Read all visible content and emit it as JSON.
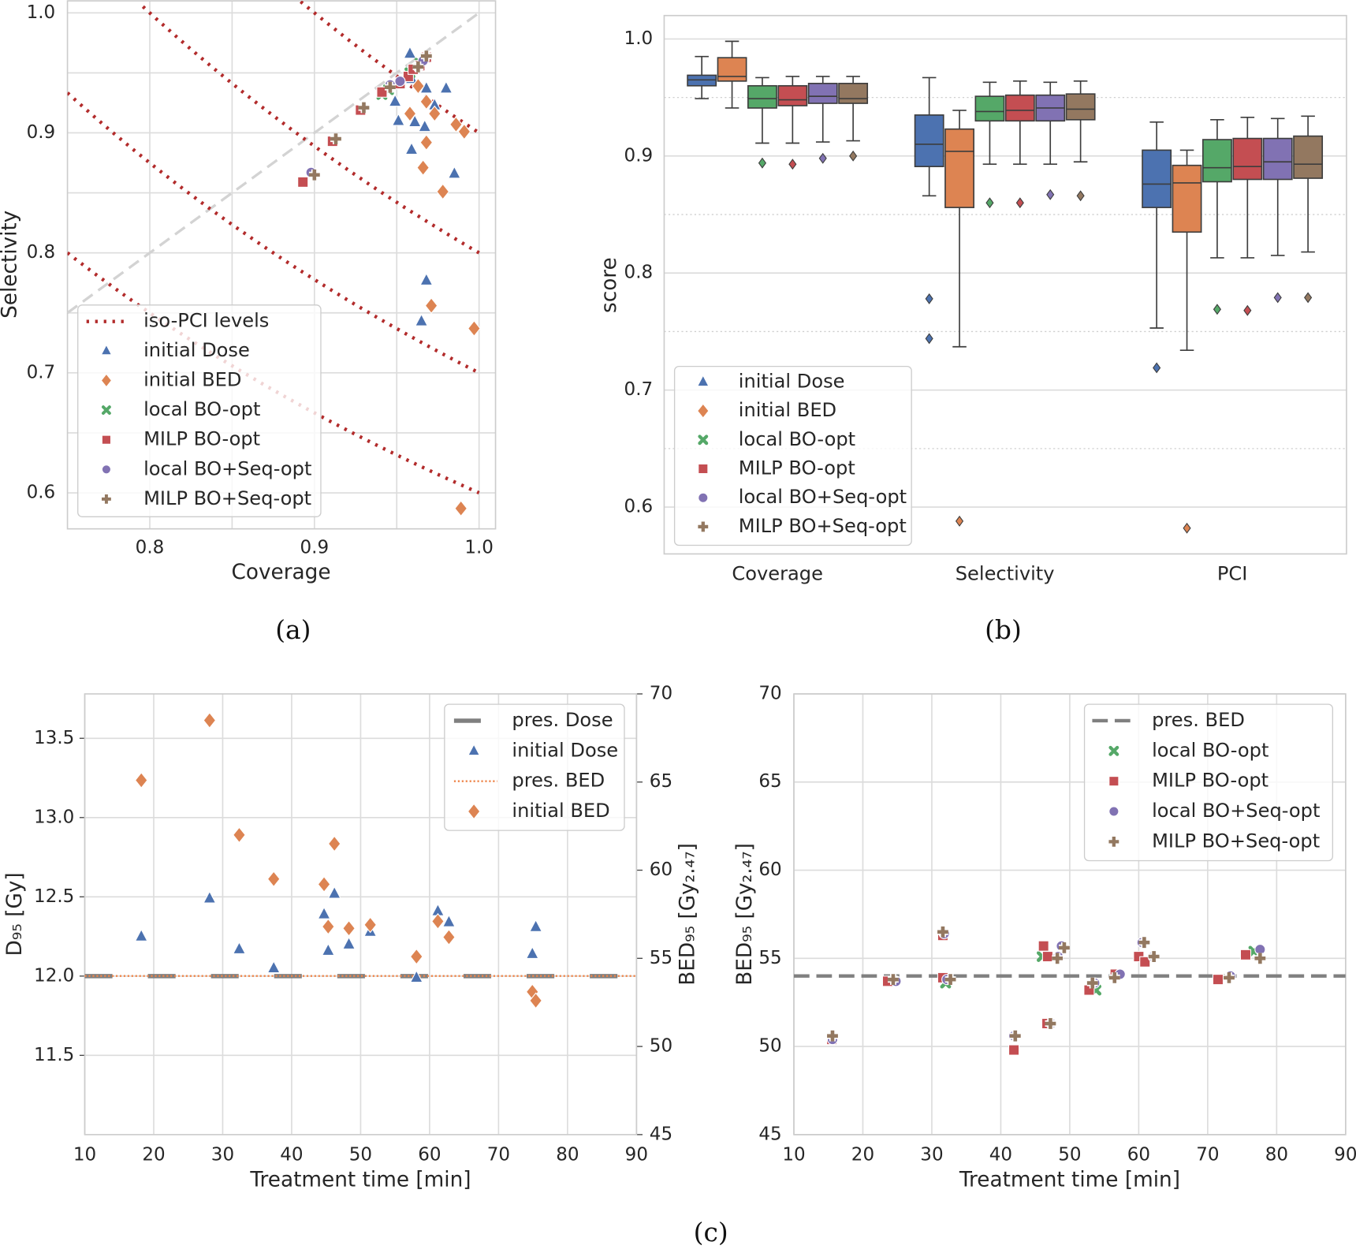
{
  "figure_labels": {
    "a": "(a)",
    "b": "(b)",
    "c": "(c)"
  },
  "colors": {
    "initial_dose": "#4c72b0",
    "initial_bed": "#dd8452",
    "local_bo_opt": "#55a868",
    "milp_bo_opt": "#c44e52",
    "local_bo_seq_opt": "#8172b3",
    "milp_bo_seq_opt": "#937860",
    "iso_pci": "#b22b2b",
    "pres_dose": "#808080",
    "pres_bed_dotted": "#ee854a",
    "identity_line": "#d3d3d3"
  },
  "chart_data": [
    {
      "panel": "a",
      "type": "scatter",
      "xlabel": "Coverage",
      "ylabel": "Selectivity",
      "xlim": [
        0.75,
        1.01
      ],
      "ylim": [
        0.57,
        1.01
      ],
      "xticks": [
        "0.8",
        "0.9",
        "1.0"
      ],
      "yticks": [
        "0.6",
        "0.7",
        "0.8",
        "0.9",
        "1.0"
      ],
      "grid": true,
      "legend": "lower-left",
      "identity_line": true,
      "iso_pci": {
        "name": "iso-PCI levels",
        "levels": [
          0.6,
          0.7,
          0.8,
          0.9
        ]
      },
      "series": [
        {
          "name": "initial Dose",
          "marker": "triangle",
          "color": "#4c72b0",
          "x": [
            0.958,
            0.959,
            0.968,
            0.98,
            0.949,
            0.973,
            0.951,
            0.961,
            0.967,
            0.959,
            0.985,
            0.968,
            0.965
          ],
          "y": [
            0.966,
            0.945,
            0.937,
            0.937,
            0.926,
            0.923,
            0.91,
            0.909,
            0.905,
            0.886,
            0.866,
            0.777,
            0.743
          ]
        },
        {
          "name": "initial BED",
          "marker": "diamond",
          "color": "#dd8452",
          "x": [
            0.963,
            0.968,
            0.958,
            0.973,
            0.986,
            0.991,
            0.968,
            0.966,
            0.978,
            0.971,
            0.997,
            0.989
          ],
          "y": [
            0.939,
            0.926,
            0.916,
            0.916,
            0.907,
            0.901,
            0.892,
            0.871,
            0.851,
            0.756,
            0.737,
            0.587
          ]
        },
        {
          "name": "local BO-opt",
          "marker": "x",
          "color": "#55a868",
          "x": [
            0.941,
            0.945,
            0.958,
            0.964
          ],
          "y": [
            0.932,
            0.936,
            0.95,
            0.958
          ]
        },
        {
          "name": "MILP BO-opt",
          "marker": "square",
          "color": "#c44e52",
          "x": [
            0.893,
            0.911,
            0.928,
            0.941,
            0.952,
            0.957,
            0.96,
            0.964,
            0.968
          ],
          "y": [
            0.859,
            0.893,
            0.919,
            0.934,
            0.941,
            0.947,
            0.953,
            0.956,
            0.963
          ]
        },
        {
          "name": "local BO+Seq-opt",
          "marker": "circle",
          "color": "#8172b3",
          "x": [
            0.898,
            0.946,
            0.952,
            0.963,
            0.966
          ],
          "y": [
            0.867,
            0.94,
            0.943,
            0.955,
            0.96
          ]
        },
        {
          "name": "MILP BO+Seq-opt",
          "marker": "plus",
          "color": "#937860",
          "x": [
            0.9,
            0.913,
            0.93,
            0.946,
            0.963,
            0.968
          ],
          "y": [
            0.865,
            0.895,
            0.921,
            0.938,
            0.955,
            0.964
          ]
        }
      ]
    },
    {
      "panel": "b",
      "type": "box",
      "ylabel": "score",
      "xlabel": "",
      "categories": [
        "Coverage",
        "Selectivity",
        "PCI"
      ],
      "ylim": [
        0.56,
        1.02
      ],
      "yticks": [
        "0.6",
        "0.7",
        "0.8",
        "0.9",
        "1.0"
      ],
      "minor_gridlines": [
        0.65,
        0.75,
        0.85,
        0.95
      ],
      "grid": true,
      "legend": "lower-left",
      "series": [
        {
          "name": "initial Dose",
          "marker": "triangle",
          "color": "#4c72b0",
          "stats": [
            {
              "whislo": 0.949,
              "q1": 0.96,
              "median": 0.965,
              "q3": 0.969,
              "whishi": 0.985,
              "fliers": []
            },
            {
              "whislo": 0.866,
              "q1": 0.891,
              "median": 0.91,
              "q3": 0.935,
              "whishi": 0.967,
              "fliers": [
                0.778,
                0.744
              ]
            },
            {
              "whislo": 0.753,
              "q1": 0.856,
              "median": 0.876,
              "q3": 0.905,
              "whishi": 0.929,
              "fliers": [
                0.719
              ]
            }
          ]
        },
        {
          "name": "initial BED",
          "marker": "diamond",
          "color": "#dd8452",
          "stats": [
            {
              "whislo": 0.941,
              "q1": 0.964,
              "median": 0.968,
              "q3": 0.984,
              "whishi": 0.998,
              "fliers": []
            },
            {
              "whislo": 0.737,
              "q1": 0.856,
              "median": 0.904,
              "q3": 0.923,
              "whishi": 0.939,
              "fliers": [
                0.588
              ]
            },
            {
              "whislo": 0.734,
              "q1": 0.835,
              "median": 0.877,
              "q3": 0.892,
              "whishi": 0.905,
              "fliers": [
                0.582
              ]
            }
          ]
        },
        {
          "name": "local BO-opt",
          "marker": "x",
          "color": "#55a868",
          "stats": [
            {
              "whislo": 0.911,
              "q1": 0.941,
              "median": 0.949,
              "q3": 0.96,
              "whishi": 0.967,
              "fliers": [
                0.894
              ]
            },
            {
              "whislo": 0.893,
              "q1": 0.93,
              "median": 0.938,
              "q3": 0.951,
              "whishi": 0.963,
              "fliers": [
                0.86
              ]
            },
            {
              "whislo": 0.813,
              "q1": 0.878,
              "median": 0.89,
              "q3": 0.914,
              "whishi": 0.931,
              "fliers": [
                0.769
              ]
            }
          ]
        },
        {
          "name": "MILP BO-opt",
          "marker": "square",
          "color": "#c44e52",
          "stats": [
            {
              "whislo": 0.911,
              "q1": 0.943,
              "median": 0.948,
              "q3": 0.96,
              "whishi": 0.968,
              "fliers": [
                0.893
              ]
            },
            {
              "whislo": 0.893,
              "q1": 0.93,
              "median": 0.939,
              "q3": 0.952,
              "whishi": 0.964,
              "fliers": [
                0.86
              ]
            },
            {
              "whislo": 0.813,
              "q1": 0.88,
              "median": 0.891,
              "q3": 0.915,
              "whishi": 0.933,
              "fliers": [
                0.768
              ]
            }
          ]
        },
        {
          "name": "local BO+Seq-opt",
          "marker": "circle",
          "color": "#8172b3",
          "stats": [
            {
              "whislo": 0.912,
              "q1": 0.945,
              "median": 0.951,
              "q3": 0.962,
              "whishi": 0.968,
              "fliers": [
                0.898
              ]
            },
            {
              "whislo": 0.893,
              "q1": 0.93,
              "median": 0.941,
              "q3": 0.952,
              "whishi": 0.963,
              "fliers": [
                0.867
              ]
            },
            {
              "whislo": 0.815,
              "q1": 0.88,
              "median": 0.895,
              "q3": 0.915,
              "whishi": 0.932,
              "fliers": [
                0.779
              ]
            }
          ]
        },
        {
          "name": "MILP BO+Seq-opt",
          "marker": "plus",
          "color": "#937860",
          "stats": [
            {
              "whislo": 0.913,
              "q1": 0.945,
              "median": 0.949,
              "q3": 0.962,
              "whishi": 0.968,
              "fliers": [
                0.9
              ]
            },
            {
              "whislo": 0.895,
              "q1": 0.931,
              "median": 0.94,
              "q3": 0.953,
              "whishi": 0.964,
              "fliers": [
                0.866
              ]
            },
            {
              "whislo": 0.818,
              "q1": 0.881,
              "median": 0.893,
              "q3": 0.917,
              "whishi": 0.934,
              "fliers": [
                0.779
              ]
            }
          ]
        }
      ]
    },
    {
      "panel": "c-left",
      "type": "scatter",
      "xlabel": "Treatment time [min]",
      "ylabel": "D₉₅ [Gy]",
      "ylabel_right": "BED₉₅ [Gy₂.₄₇]",
      "xlim": [
        10,
        90
      ],
      "ylim": [
        11.0,
        13.78
      ],
      "ylim_right": [
        45,
        70
      ],
      "xticks": [
        "10",
        "20",
        "30",
        "40",
        "50",
        "60",
        "70",
        "80",
        "90"
      ],
      "yticks": [
        "11.5",
        "12.0",
        "12.5",
        "13.0",
        "13.5"
      ],
      "yticks_right": [
        "45",
        "50",
        "55",
        "60",
        "65",
        "70"
      ],
      "grid": true,
      "legend": "upper-right",
      "reference_lines": [
        {
          "name": "pres. Dose",
          "axis": "left",
          "y": 12.0,
          "style": "dashed",
          "color": "#808080"
        },
        {
          "name": "pres. BED",
          "axis": "right",
          "y": 54.0,
          "style": "dotted",
          "color": "#ee854a"
        }
      ],
      "series": [
        {
          "name": "initial Dose",
          "axis": "left",
          "marker": "triangle",
          "color": "#4c72b0",
          "x": [
            18.2,
            28.1,
            32.4,
            37.4,
            44.7,
            46.2,
            45.3,
            48.3,
            51.4,
            58.1,
            61.2,
            62.8,
            75.4,
            74.9
          ],
          "y": [
            12.25,
            12.49,
            12.17,
            12.05,
            12.39,
            12.52,
            12.16,
            12.2,
            12.28,
            11.99,
            12.41,
            12.34,
            12.31,
            12.14
          ]
        },
        {
          "name": "initial BED",
          "axis": "right",
          "marker": "diamond",
          "color": "#dd8452",
          "x": [
            18.2,
            28.1,
            32.4,
            37.4,
            44.7,
            46.2,
            45.3,
            48.3,
            51.4,
            58.1,
            61.2,
            62.8,
            74.9,
            75.4
          ],
          "y": [
            65.1,
            68.5,
            62.0,
            59.5,
            59.2,
            61.5,
            56.8,
            56.7,
            56.9,
            55.1,
            57.1,
            56.2,
            53.1,
            52.6
          ]
        }
      ],
      "legend_order": [
        "pres. Dose",
        "initial Dose",
        "pres. BED",
        "initial BED"
      ]
    },
    {
      "panel": "c-right",
      "type": "scatter",
      "xlabel": "Treatment time [min]",
      "ylabel": "BED₉₅ [Gy₂.₄₇]",
      "xlim": [
        10,
        90
      ],
      "ylim": [
        45,
        70
      ],
      "xticks": [
        "10",
        "20",
        "30",
        "40",
        "50",
        "60",
        "70",
        "80",
        "90"
      ],
      "yticks": [
        "45",
        "50",
        "55",
        "60",
        "65",
        "70"
      ],
      "grid": true,
      "legend": "upper-right",
      "reference_lines": [
        {
          "name": "pres. BED",
          "y": 54.0,
          "style": "dashed",
          "color": "#808080"
        }
      ],
      "series": [
        {
          "name": "local BO-opt",
          "marker": "x",
          "color": "#55a868",
          "x": [
            46.0,
            76.7,
            32.0,
            53.8
          ],
          "y": [
            55.1,
            55.4,
            53.6,
            53.2
          ]
        },
        {
          "name": "MILP BO-opt",
          "marker": "square",
          "color": "#c44e52",
          "x": [
            15.5,
            23.6,
            31.6,
            31.6,
            46.2,
            46.8,
            41.9,
            46.7,
            52.8,
            56.6,
            60.0,
            60.9,
            71.5,
            75.5
          ],
          "y": [
            50.4,
            53.7,
            53.9,
            56.3,
            55.7,
            55.1,
            49.8,
            51.3,
            53.2,
            54.1,
            55.1,
            54.8,
            53.8,
            55.2
          ]
        },
        {
          "name": "local BO+Seq-opt",
          "marker": "circle",
          "color": "#8172b3",
          "x": [
            15.6,
            24.8,
            31.8,
            32.2,
            41.9,
            47.3,
            48.8,
            48.3,
            53.6,
            57.3,
            60.5,
            62.1,
            73.3,
            77.6
          ],
          "y": [
            50.4,
            53.7,
            56.4,
            53.8,
            50.6,
            51.3,
            55.7,
            55.1,
            53.6,
            54.1,
            55.9,
            55.1,
            54.0,
            55.5
          ]
        },
        {
          "name": "MILP BO+Seq-opt",
          "marker": "plus",
          "color": "#937860",
          "x": [
            15.6,
            24.4,
            31.6,
            32.7,
            42.1,
            47.2,
            49.2,
            48.2,
            53.3,
            56.5,
            60.8,
            62.2,
            73.1,
            77.6
          ],
          "y": [
            50.6,
            53.8,
            56.5,
            53.8,
            50.6,
            51.3,
            55.6,
            55.0,
            53.6,
            53.9,
            55.9,
            55.1,
            53.9,
            55.0
          ]
        }
      ]
    }
  ]
}
